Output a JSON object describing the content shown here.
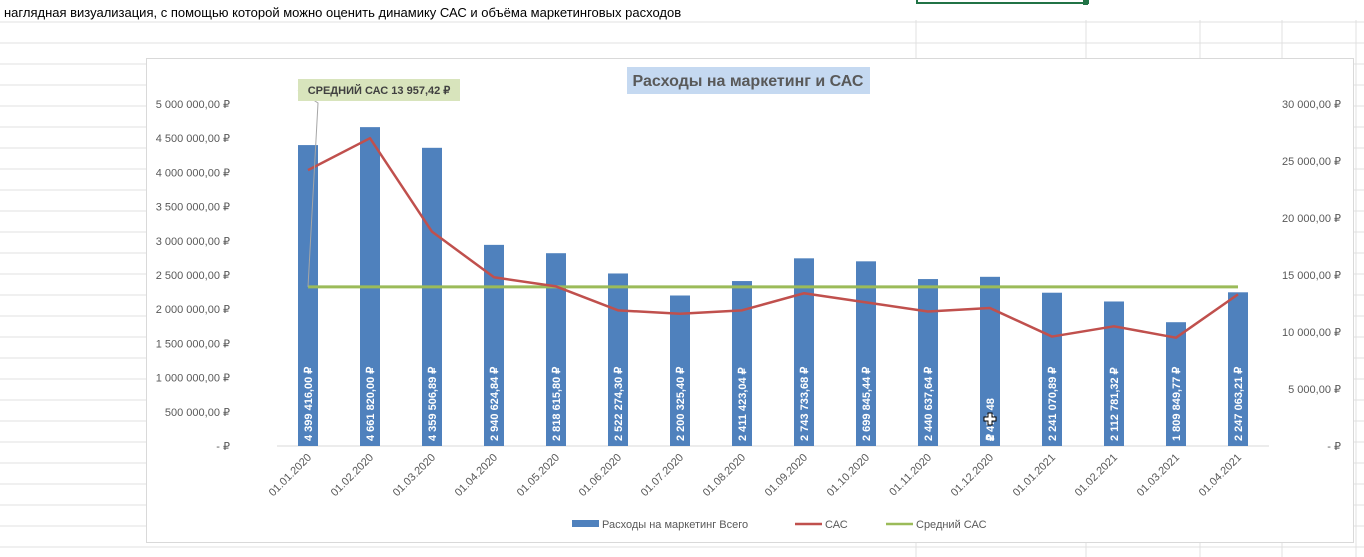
{
  "sheet": {
    "caption": "наглядная визуализация, с помощью которой можно оценить динамику САС и объёма маркетинговых расходов",
    "colors": {
      "gridline": "#e1e1e1",
      "selection": "#217346"
    }
  },
  "chart_data": {
    "type": "bar",
    "title": "Расходы на маркетинг  и САС",
    "categories": [
      "01.01.2020",
      "01.02.2020",
      "01.03.2020",
      "01.04.2020",
      "01.05.2020",
      "01.06.2020",
      "01.07.2020",
      "01.08.2020",
      "01.09.2020",
      "01.10.2020",
      "01.11.2020",
      "01.12.2020",
      "01.01.2021",
      "01.02.2021",
      "01.03.2021",
      "01.04.2021"
    ],
    "series": [
      {
        "name": "Расходы на маркетинг Всего",
        "type": "bar",
        "axis": "left",
        "color": "#4f81bd",
        "values": [
          4399416.0,
          4661820.0,
          4359506.89,
          2940624.84,
          2818615.8,
          2522274.3,
          2200325.4,
          2411423.04,
          2743733.68,
          2699845.44,
          2440637.64,
          2473480.0,
          2241070.89,
          2112781.32,
          1809849.77,
          2247063.21
        ],
        "data_labels": [
          "4 399 416,00 ₽",
          "4 661 820,00 ₽",
          "4 359 506,89 ₽",
          "2 940 624,84 ₽",
          "2 818 615,80 ₽",
          "2 522 274,30 ₽",
          "2 200 325,40 ₽",
          "2 411 423,04 ₽",
          "2 743 733,68 ₽",
          "2 699 845,44 ₽",
          "2 440 637,64 ₽",
          "2 473 48",
          "2 241 070,89 ₽",
          "2 112 781,32 ₽",
          "1 809 849,77 ₽",
          "2 247 063,21 ₽"
        ],
        "data_label_tail_12": "₽"
      },
      {
        "name": "САС",
        "type": "line",
        "axis": "right",
        "color": "#c0504d",
        "values": [
          24200,
          27000,
          18800,
          14800,
          14000,
          11900,
          11600,
          11900,
          13400,
          12600,
          11800,
          12100,
          9600,
          10500,
          9500,
          13300
        ]
      },
      {
        "name": "Средний САС",
        "type": "line",
        "axis": "right",
        "color": "#9bbb59",
        "values": [
          13957.42,
          13957.42,
          13957.42,
          13957.42,
          13957.42,
          13957.42,
          13957.42,
          13957.42,
          13957.42,
          13957.42,
          13957.42,
          13957.42,
          13957.42,
          13957.42,
          13957.42,
          13957.42
        ]
      }
    ],
    "y_left": {
      "ylim": [
        0,
        5000000
      ],
      "ticks": [
        0,
        500000,
        1000000,
        1500000,
        2000000,
        2500000,
        3000000,
        3500000,
        4000000,
        4500000,
        5000000
      ],
      "tick_labels": [
        "-   ₽",
        "500 000,00 ₽",
        "1 000 000,00 ₽",
        "1 500 000,00 ₽",
        "2 000 000,00 ₽",
        "2 500 000,00 ₽",
        "3 000 000,00 ₽",
        "3 500 000,00 ₽",
        "4 000 000,00 ₽",
        "4 500 000,00 ₽",
        "5 000 000,00 ₽"
      ]
    },
    "y_right": {
      "ylim": [
        0,
        30000
      ],
      "ticks": [
        0,
        5000,
        10000,
        15000,
        20000,
        25000,
        30000
      ],
      "tick_labels": [
        "-   ₽",
        "5 000,00 ₽",
        "10 000,00 ₽",
        "15 000,00 ₽",
        "20 000,00 ₽",
        "25 000,00 ₽",
        "30 000,00 ₽"
      ]
    },
    "annotation": {
      "text": "СРЕДНИЙ САС  13 957,42 ₽",
      "points_to_index": 0
    },
    "grid": false,
    "legend": {
      "position": "bottom",
      "entries": [
        "Расходы на маркетинг Всего",
        "САС",
        "Средний САС"
      ]
    }
  }
}
